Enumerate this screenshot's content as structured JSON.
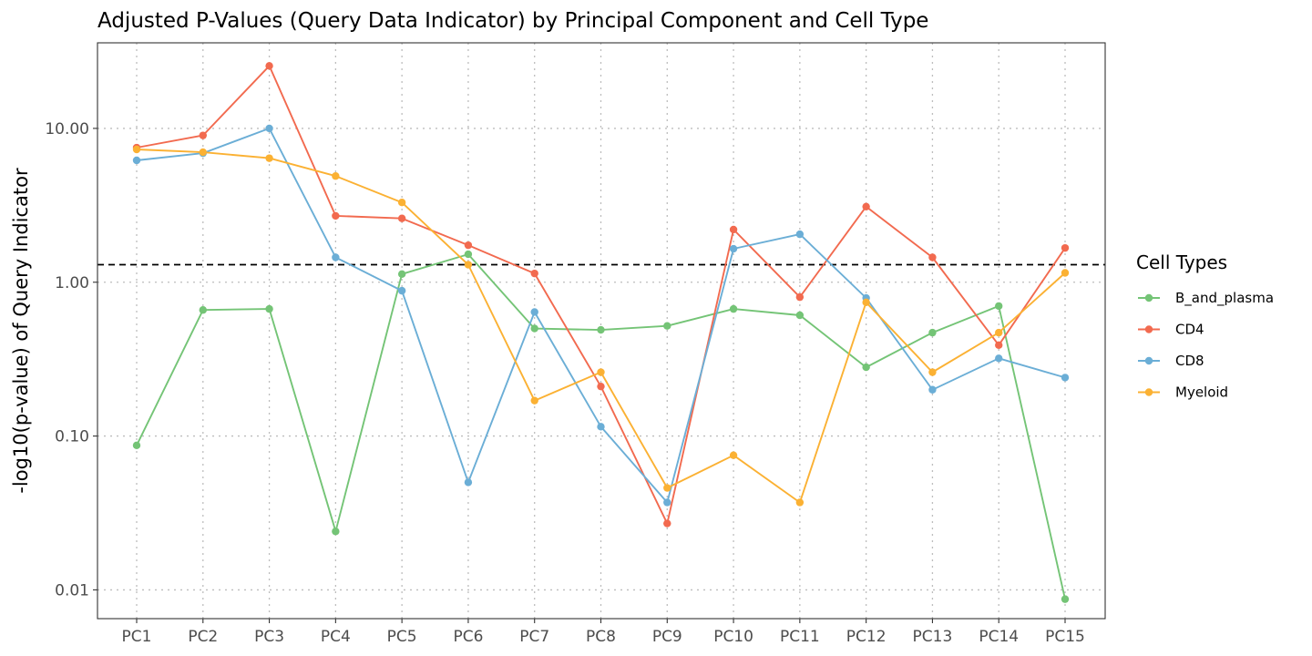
{
  "chart_data": {
    "type": "line",
    "title": "Adjusted P-Values (Query Data Indicator) by Principal Component and Cell Type",
    "xlabel": "",
    "ylabel": "-log10(p-value) of Query Indicator",
    "y_scale": "log10",
    "ylim": [
      0.0065,
      36
    ],
    "y_ticks": [
      0.01,
      0.1,
      1.0,
      10.0
    ],
    "y_tick_labels": [
      "0.01",
      "0.10",
      "1.00",
      "10.00"
    ],
    "grid": true,
    "grid_style": "dotted",
    "reference_line": {
      "y": 1.3,
      "style": "dashed",
      "color": "#000000"
    },
    "categories": [
      "PC1",
      "PC2",
      "PC3",
      "PC4",
      "PC5",
      "PC6",
      "PC7",
      "PC8",
      "PC9",
      "PC10",
      "PC11",
      "PC12",
      "PC13",
      "PC14",
      "PC15"
    ],
    "legend": {
      "title": "Cell Types",
      "position": "right"
    },
    "series": [
      {
        "name": "B_and_plasma",
        "color": "#74c476",
        "values": [
          0.087,
          0.66,
          0.67,
          0.024,
          1.13,
          1.52,
          0.5,
          0.49,
          0.52,
          0.67,
          0.61,
          0.28,
          0.47,
          0.7,
          0.0087
        ]
      },
      {
        "name": "CD4",
        "color": "#f26a4f",
        "values": [
          7.5,
          9.0,
          25.5,
          2.7,
          2.6,
          1.74,
          1.14,
          0.21,
          0.027,
          2.2,
          0.8,
          3.1,
          1.45,
          0.39,
          1.67
        ]
      },
      {
        "name": "CD8",
        "color": "#6baed6",
        "values": [
          6.2,
          6.9,
          10.0,
          1.45,
          0.88,
          0.05,
          0.64,
          0.115,
          0.037,
          1.65,
          2.05,
          0.79,
          0.2,
          0.32,
          0.24
        ]
      },
      {
        "name": "Myeloid",
        "color": "#fbb133",
        "values": [
          7.3,
          7.0,
          6.4,
          4.9,
          3.3,
          1.3,
          0.17,
          0.26,
          0.046,
          0.075,
          0.037,
          0.74,
          0.26,
          0.47,
          1.15
        ]
      }
    ]
  }
}
